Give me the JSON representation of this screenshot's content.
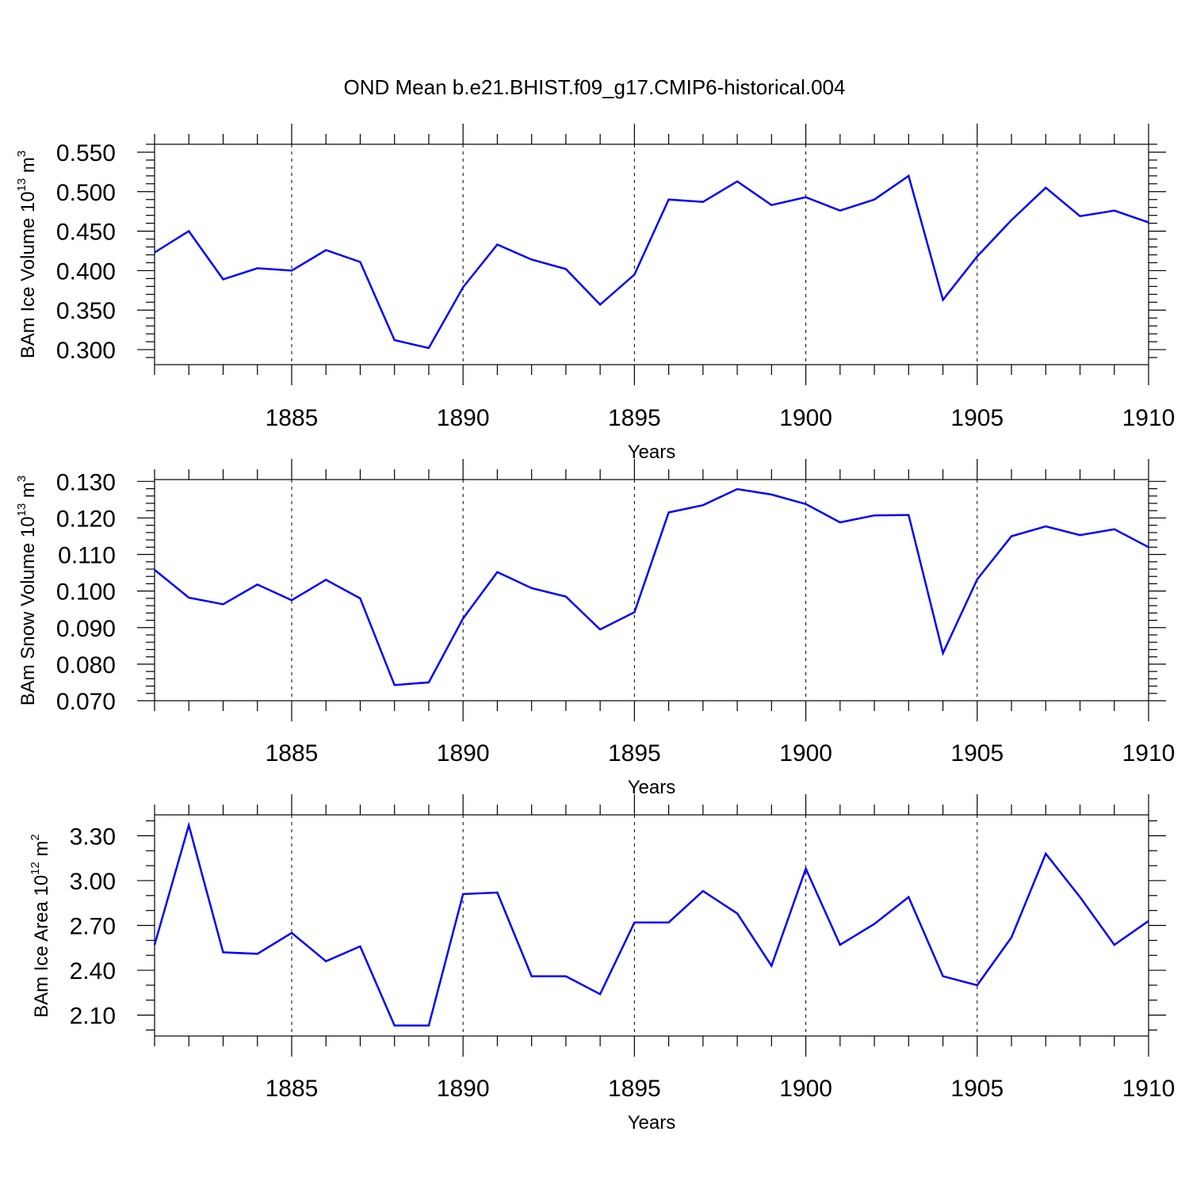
{
  "title": "OND Mean b.e21.BHIST.f09_g17.CMIP6-historical.004",
  "colors": {
    "series": "#0000ff"
  },
  "chart_data": [
    {
      "type": "line",
      "title": "",
      "ylabel_main": "BAm Ice Volume 10",
      "ylabel_exp": "13",
      "ylabel_unit": " m",
      "ylabel_unit_exp": "3",
      "xlabel": "Years",
      "xlim": [
        1881,
        1910
      ],
      "ylim": [
        0.281,
        0.56
      ],
      "x_ticks": [
        "1885",
        "1890",
        "1895",
        "1900",
        "1905",
        "1910"
      ],
      "y_ticks": [
        "0.550",
        "0.500",
        "0.450",
        "0.400",
        "0.350",
        "0.300"
      ],
      "y_tick_values": [
        0.55,
        0.5,
        0.45,
        0.4,
        0.35,
        0.3
      ],
      "y_minor_step": 0.01,
      "grid": "dashed vertical at labeled years",
      "x": [
        1881,
        1882,
        1883,
        1884,
        1885,
        1886,
        1887,
        1888,
        1889,
        1890,
        1891,
        1892,
        1893,
        1894,
        1895,
        1896,
        1897,
        1898,
        1899,
        1900,
        1901,
        1902,
        1903,
        1904,
        1905,
        1906,
        1907,
        1908,
        1909,
        1910
      ],
      "values": [
        0.423,
        0.45,
        0.389,
        0.403,
        0.4,
        0.426,
        0.411,
        0.312,
        0.302,
        0.379,
        0.433,
        0.414,
        0.402,
        0.357,
        0.395,
        0.49,
        0.487,
        0.513,
        0.483,
        0.493,
        0.476,
        0.49,
        0.52,
        0.363,
        0.418,
        0.464,
        0.505,
        0.469,
        0.476,
        0.461
      ]
    },
    {
      "type": "line",
      "title": "",
      "ylabel_main": "BAm Snow Volume 10",
      "ylabel_exp": "13",
      "ylabel_unit": " m",
      "ylabel_unit_exp": "3",
      "xlabel": "Years",
      "xlim": [
        1881,
        1910
      ],
      "ylim": [
        0.07,
        0.1305
      ],
      "x_ticks": [
        "1885",
        "1890",
        "1895",
        "1900",
        "1905",
        "1910"
      ],
      "y_ticks": [
        "0.130",
        "0.120",
        "0.110",
        "0.100",
        "0.090",
        "0.080",
        "0.070"
      ],
      "y_tick_values": [
        0.13,
        0.12,
        0.11,
        0.1,
        0.09,
        0.08,
        0.07
      ],
      "y_minor_step": 0.002,
      "grid": "dashed vertical at labeled years",
      "x": [
        1881,
        1882,
        1883,
        1884,
        1885,
        1886,
        1887,
        1888,
        1889,
        1890,
        1891,
        1892,
        1893,
        1894,
        1895,
        1896,
        1897,
        1898,
        1899,
        1900,
        1901,
        1902,
        1903,
        1904,
        1905,
        1906,
        1907,
        1908,
        1909,
        1910
      ],
      "values": [
        0.1058,
        0.0982,
        0.0964,
        0.1018,
        0.0975,
        0.1031,
        0.098,
        0.0743,
        0.075,
        0.0925,
        0.1052,
        0.1008,
        0.0985,
        0.0895,
        0.0942,
        0.1215,
        0.1235,
        0.1279,
        0.1264,
        0.1238,
        0.1188,
        0.1207,
        0.1208,
        0.083,
        0.1032,
        0.115,
        0.1177,
        0.1153,
        0.1169,
        0.112
      ]
    },
    {
      "type": "line",
      "title": "",
      "ylabel_main": "BAm Ice Area 10",
      "ylabel_exp": "12",
      "ylabel_unit": " m",
      "ylabel_unit_exp": "2",
      "xlabel": "Years",
      "xlim": [
        1881,
        1910
      ],
      "ylim": [
        1.96,
        3.44
      ],
      "x_ticks": [
        "1885",
        "1890",
        "1895",
        "1900",
        "1905",
        "1910"
      ],
      "y_ticks": [
        "3.30",
        "3.00",
        "2.70",
        "2.40",
        "2.10"
      ],
      "y_tick_values": [
        3.3,
        3.0,
        2.7,
        2.4,
        2.1
      ],
      "y_minor_step": 0.1,
      "grid": "dashed vertical at labeled years",
      "x": [
        1881,
        1882,
        1883,
        1884,
        1885,
        1886,
        1887,
        1888,
        1889,
        1890,
        1891,
        1892,
        1893,
        1894,
        1895,
        1896,
        1897,
        1898,
        1899,
        1900,
        1901,
        1902,
        1903,
        1904,
        1905,
        1906,
        1907,
        1908,
        1909,
        1910
      ],
      "values": [
        2.57,
        3.37,
        2.52,
        2.51,
        2.65,
        2.46,
        2.56,
        2.03,
        2.03,
        2.91,
        2.92,
        2.36,
        2.36,
        2.24,
        2.72,
        2.72,
        2.93,
        2.78,
        2.43,
        3.08,
        2.57,
        2.71,
        2.89,
        2.36,
        2.3,
        2.62,
        3.18,
        2.89,
        2.57,
        2.73
      ]
    }
  ]
}
